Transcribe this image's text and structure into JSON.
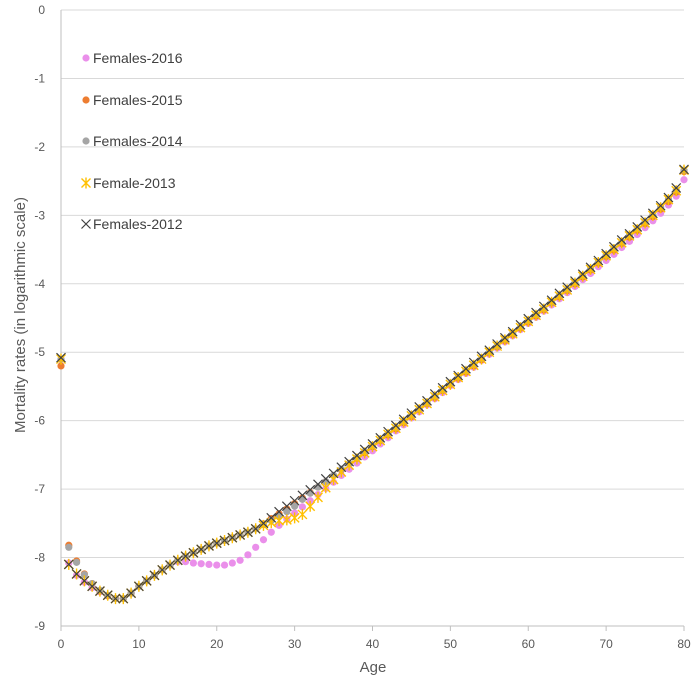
{
  "chart_data": {
    "type": "scatter",
    "xlabel": "Age",
    "ylabel": "Mortality rates (in logarithmic scale)",
    "xlim": [
      0,
      80
    ],
    "ylim": [
      -9,
      0
    ],
    "x_ticks": [
      "0",
      "10",
      "20",
      "30",
      "40",
      "50",
      "60",
      "70",
      "80"
    ],
    "y_ticks": [
      "0",
      "-1",
      "-2",
      "-3",
      "-4",
      "-5",
      "-6",
      "-7",
      "-8",
      "-9"
    ],
    "grid": "horizontal",
    "legend_position": "top-left",
    "series": [
      {
        "name": "Females-2016",
        "marker": "circle",
        "color": "#ea8fea",
        "x": [
          0,
          1,
          2,
          3,
          4,
          5,
          6,
          7,
          8,
          9,
          10,
          11,
          12,
          13,
          14,
          15,
          16,
          17,
          18,
          19,
          20,
          21,
          22,
          23,
          24,
          25,
          26,
          27,
          28,
          29,
          30,
          31,
          32,
          33,
          34,
          35,
          36,
          37,
          38,
          39,
          40,
          41,
          42,
          43,
          44,
          45,
          46,
          47,
          48,
          49,
          50,
          51,
          52,
          53,
          54,
          55,
          56,
          57,
          58,
          59,
          60,
          61,
          62,
          63,
          64,
          65,
          66,
          67,
          68,
          69,
          70,
          71,
          72,
          73,
          74,
          75,
          76,
          77,
          78,
          79,
          80
        ],
        "y": [
          -5.1,
          -8.08,
          -8.26,
          -8.36,
          -8.44,
          -8.5,
          -8.56,
          -8.6,
          -8.6,
          -8.52,
          -8.42,
          -8.34,
          -8.26,
          -8.18,
          -8.11,
          -8.06,
          -8.06,
          -8.08,
          -8.09,
          -8.1,
          -8.11,
          -8.11,
          -8.08,
          -8.04,
          -7.96,
          -7.85,
          -7.74,
          -7.63,
          -7.53,
          -7.44,
          -7.35,
          -7.26,
          -7.17,
          -7.08,
          -6.99,
          -6.9,
          -6.8,
          -6.71,
          -6.62,
          -6.53,
          -6.44,
          -6.34,
          -6.25,
          -6.15,
          -6.06,
          -5.96,
          -5.87,
          -5.77,
          -5.68,
          -5.59,
          -5.49,
          -5.4,
          -5.31,
          -5.22,
          -5.12,
          -5.03,
          -4.94,
          -4.85,
          -4.76,
          -4.67,
          -4.58,
          -4.49,
          -4.4,
          -4.31,
          -4.22,
          -4.13,
          -4.04,
          -3.94,
          -3.85,
          -3.75,
          -3.66,
          -3.57,
          -3.47,
          -3.38,
          -3.28,
          -3.18,
          -3.08,
          -2.97,
          -2.85,
          -2.72,
          -2.48
        ]
      },
      {
        "name": "Females-2015",
        "marker": "circle",
        "color": "#ed7d31",
        "x": [
          0,
          1,
          2,
          3,
          4,
          5,
          6,
          7,
          8,
          9,
          10,
          11,
          12,
          13,
          14,
          15,
          16,
          17,
          18,
          19,
          20,
          21,
          22,
          23,
          24,
          25,
          26,
          27,
          28,
          29,
          30,
          31,
          32,
          33,
          34,
          35,
          36,
          37,
          38,
          39,
          40,
          41,
          42,
          43,
          44,
          45,
          46,
          47,
          48,
          49,
          50,
          51,
          52,
          53,
          54,
          55,
          56,
          57,
          58,
          59,
          60,
          61,
          62,
          63,
          64,
          65,
          66,
          67,
          68,
          69,
          70,
          71,
          72,
          73,
          74,
          75,
          76,
          77,
          78,
          79,
          80
        ],
        "y": [
          -5.2,
          -7.82,
          -8.05,
          -8.24,
          -8.38,
          -8.49,
          -8.56,
          -8.6,
          -8.6,
          -8.52,
          -8.42,
          -8.34,
          -8.26,
          -8.18,
          -8.11,
          -8.04,
          -7.98,
          -7.93,
          -7.88,
          -7.83,
          -7.79,
          -7.75,
          -7.71,
          -7.67,
          -7.63,
          -7.58,
          -7.51,
          -7.43,
          -7.36,
          -7.29,
          -7.21,
          -7.13,
          -7.05,
          -6.97,
          -6.89,
          -6.8,
          -6.72,
          -6.63,
          -6.55,
          -6.47,
          -6.38,
          -6.29,
          -6.21,
          -6.12,
          -6.03,
          -5.94,
          -5.84,
          -5.75,
          -5.66,
          -5.56,
          -5.47,
          -5.38,
          -5.29,
          -5.2,
          -5.11,
          -5.01,
          -4.92,
          -4.83,
          -4.74,
          -4.65,
          -4.56,
          -4.47,
          -4.38,
          -4.28,
          -4.19,
          -4.1,
          -4.0,
          -3.9,
          -3.8,
          -3.7,
          -3.6,
          -3.51,
          -3.41,
          -3.32,
          -3.22,
          -3.12,
          -3.02,
          -2.91,
          -2.8,
          -2.66,
          -2.36
        ]
      },
      {
        "name": "Females-2014",
        "marker": "circle",
        "color": "#a5a5a5",
        "x": [
          0,
          1,
          2,
          3,
          4,
          5,
          6,
          7,
          8,
          9,
          10,
          11,
          12,
          13,
          14,
          15,
          16,
          17,
          18,
          19,
          20,
          21,
          22,
          23,
          24,
          25,
          26,
          27,
          28,
          29,
          30,
          31,
          32,
          33,
          34,
          35,
          36,
          37,
          38,
          39,
          40,
          41,
          42,
          43,
          44,
          45,
          46,
          47,
          48,
          49,
          50,
          51,
          52,
          53,
          54,
          55,
          56,
          57,
          58,
          59,
          60,
          61,
          62,
          63,
          64,
          65,
          66,
          67,
          68,
          69,
          70,
          71,
          72,
          73,
          74,
          75,
          76,
          77,
          78,
          79,
          80
        ],
        "y": [
          -5.1,
          -7.85,
          -8.07,
          -8.25,
          -8.38,
          -8.48,
          -8.55,
          -8.6,
          -8.6,
          -8.52,
          -8.42,
          -8.34,
          -8.26,
          -8.18,
          -8.11,
          -8.04,
          -7.98,
          -7.93,
          -7.88,
          -7.83,
          -7.79,
          -7.75,
          -7.71,
          -7.67,
          -7.63,
          -7.58,
          -7.52,
          -7.46,
          -7.4,
          -7.33,
          -7.25,
          -7.15,
          -7.06,
          -6.97,
          -6.89,
          -6.8,
          -6.71,
          -6.63,
          -6.54,
          -6.45,
          -6.37,
          -6.28,
          -6.19,
          -6.1,
          -6.01,
          -5.92,
          -5.83,
          -5.74,
          -5.64,
          -5.55,
          -5.46,
          -5.36,
          -5.27,
          -5.18,
          -5.09,
          -5.0,
          -4.91,
          -4.81,
          -4.72,
          -4.63,
          -4.54,
          -4.45,
          -4.36,
          -4.27,
          -4.17,
          -4.08,
          -3.98,
          -3.88,
          -3.78,
          -3.68,
          -3.58,
          -3.48,
          -3.39,
          -3.29,
          -3.19,
          -3.09,
          -2.99,
          -2.88,
          -2.76,
          -2.63,
          -2.34
        ]
      },
      {
        "name": "Female-2013",
        "marker": "star",
        "color": "#ffc000",
        "x": [
          0,
          1,
          2,
          3,
          4,
          5,
          6,
          7,
          8,
          9,
          10,
          11,
          12,
          13,
          14,
          15,
          16,
          17,
          18,
          19,
          20,
          21,
          22,
          23,
          24,
          25,
          26,
          27,
          28,
          29,
          30,
          31,
          32,
          33,
          34,
          35,
          36,
          37,
          38,
          39,
          40,
          41,
          42,
          43,
          44,
          45,
          46,
          47,
          48,
          49,
          50,
          51,
          52,
          53,
          54,
          55,
          56,
          57,
          58,
          59,
          60,
          61,
          62,
          63,
          64,
          65,
          66,
          67,
          68,
          69,
          70,
          71,
          72,
          73,
          74,
          75,
          76,
          77,
          78,
          79,
          80
        ],
        "y": [
          -5.1,
          -8.1,
          -8.24,
          -8.34,
          -8.42,
          -8.49,
          -8.55,
          -8.6,
          -8.6,
          -8.52,
          -8.42,
          -8.34,
          -8.26,
          -8.18,
          -8.11,
          -8.04,
          -7.98,
          -7.93,
          -7.88,
          -7.83,
          -7.79,
          -7.75,
          -7.71,
          -7.67,
          -7.63,
          -7.58,
          -7.53,
          -7.49,
          -7.46,
          -7.45,
          -7.42,
          -7.37,
          -7.25,
          -7.12,
          -6.98,
          -6.86,
          -6.75,
          -6.65,
          -6.56,
          -6.47,
          -6.38,
          -6.29,
          -6.2,
          -6.11,
          -6.02,
          -5.93,
          -5.84,
          -5.75,
          -5.65,
          -5.56,
          -5.47,
          -5.37,
          -5.28,
          -5.19,
          -5.1,
          -5.0,
          -4.91,
          -4.82,
          -4.73,
          -4.64,
          -4.55,
          -4.46,
          -4.37,
          -4.27,
          -4.18,
          -4.09,
          -3.99,
          -3.89,
          -3.79,
          -3.69,
          -3.59,
          -3.5,
          -3.4,
          -3.3,
          -3.21,
          -3.11,
          -3.0,
          -2.89,
          -2.77,
          -2.64,
          -2.34
        ]
      },
      {
        "name": "Females-2012",
        "marker": "x",
        "color": "#404040",
        "x": [
          0,
          1,
          2,
          3,
          4,
          5,
          6,
          7,
          8,
          9,
          10,
          11,
          12,
          13,
          14,
          15,
          16,
          17,
          18,
          19,
          20,
          21,
          22,
          23,
          24,
          25,
          26,
          27,
          28,
          29,
          30,
          31,
          32,
          33,
          34,
          35,
          36,
          37,
          38,
          39,
          40,
          41,
          42,
          43,
          44,
          45,
          46,
          47,
          48,
          49,
          50,
          51,
          52,
          53,
          54,
          55,
          56,
          57,
          58,
          59,
          60,
          61,
          62,
          63,
          64,
          65,
          66,
          67,
          68,
          69,
          70,
          71,
          72,
          73,
          74,
          75,
          76,
          77,
          78,
          79,
          80
        ],
        "y": [
          -5.08,
          -8.1,
          -8.24,
          -8.34,
          -8.42,
          -8.49,
          -8.55,
          -8.6,
          -8.6,
          -8.52,
          -8.42,
          -8.34,
          -8.26,
          -8.18,
          -8.11,
          -8.04,
          -7.98,
          -7.93,
          -7.88,
          -7.83,
          -7.79,
          -7.75,
          -7.71,
          -7.67,
          -7.63,
          -7.58,
          -7.5,
          -7.42,
          -7.33,
          -7.25,
          -7.17,
          -7.09,
          -7.01,
          -6.93,
          -6.85,
          -6.77,
          -6.68,
          -6.6,
          -6.51,
          -6.42,
          -6.34,
          -6.25,
          -6.16,
          -6.07,
          -5.98,
          -5.89,
          -5.8,
          -5.71,
          -5.61,
          -5.52,
          -5.43,
          -5.34,
          -5.24,
          -5.15,
          -5.06,
          -4.97,
          -4.88,
          -4.79,
          -4.7,
          -4.6,
          -4.51,
          -4.42,
          -4.33,
          -4.24,
          -4.14,
          -4.05,
          -3.96,
          -3.86,
          -3.76,
          -3.66,
          -3.56,
          -3.46,
          -3.36,
          -3.27,
          -3.17,
          -3.07,
          -2.97,
          -2.86,
          -2.74,
          -2.6,
          -2.33
        ]
      }
    ]
  }
}
